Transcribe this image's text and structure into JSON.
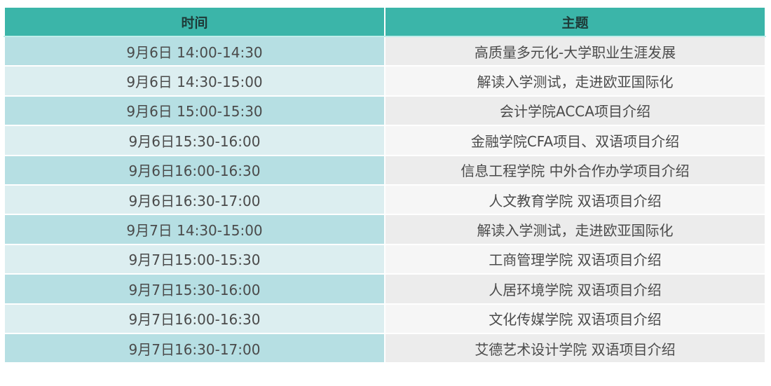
{
  "table": {
    "headers": [
      "时间",
      "主题"
    ],
    "colors": {
      "header": "#3bb5a9",
      "time_odd": "#b6dfe3",
      "time_even": "#dceef0",
      "topic_odd": "#ececec",
      "topic_even": "#f6f6f6"
    },
    "rows": [
      {
        "time": "9月6日 14:00-14:30",
        "topic": "高质量多元化-大学职业生涯发展"
      },
      {
        "time": "9月6日 14:30-15:00",
        "topic": "解读入学测试，走进欧亚国际化"
      },
      {
        "time": "9月6日 15:00-15:30",
        "topic": "会计学院ACCA项目介绍"
      },
      {
        "time": "9月6日15:30-16:00",
        "topic": "金融学院CFA项目、双语项目介绍"
      },
      {
        "time": "9月6日16:00-16:30",
        "topic": "信息工程学院 中外合作办学项目介绍"
      },
      {
        "time": "9月6日16:30-17:00",
        "topic": "人文教育学院 双语项目介绍"
      },
      {
        "time": "9月7日 14:30-15:00",
        "topic": "解读入学测试，走进欧亚国际化"
      },
      {
        "time": "9月7日15:00-15:30",
        "topic": "工商管理学院 双语项目介绍"
      },
      {
        "time": "9月7日15:30-16:00",
        "topic": "人居环境学院 双语项目介绍"
      },
      {
        "time": "9月7日16:00-16:30",
        "topic": "文化传媒学院 双语项目介绍"
      },
      {
        "time": "9月7日16:30-17:00",
        "topic": "艾德艺术设计学院 双语项目介绍"
      }
    ]
  }
}
